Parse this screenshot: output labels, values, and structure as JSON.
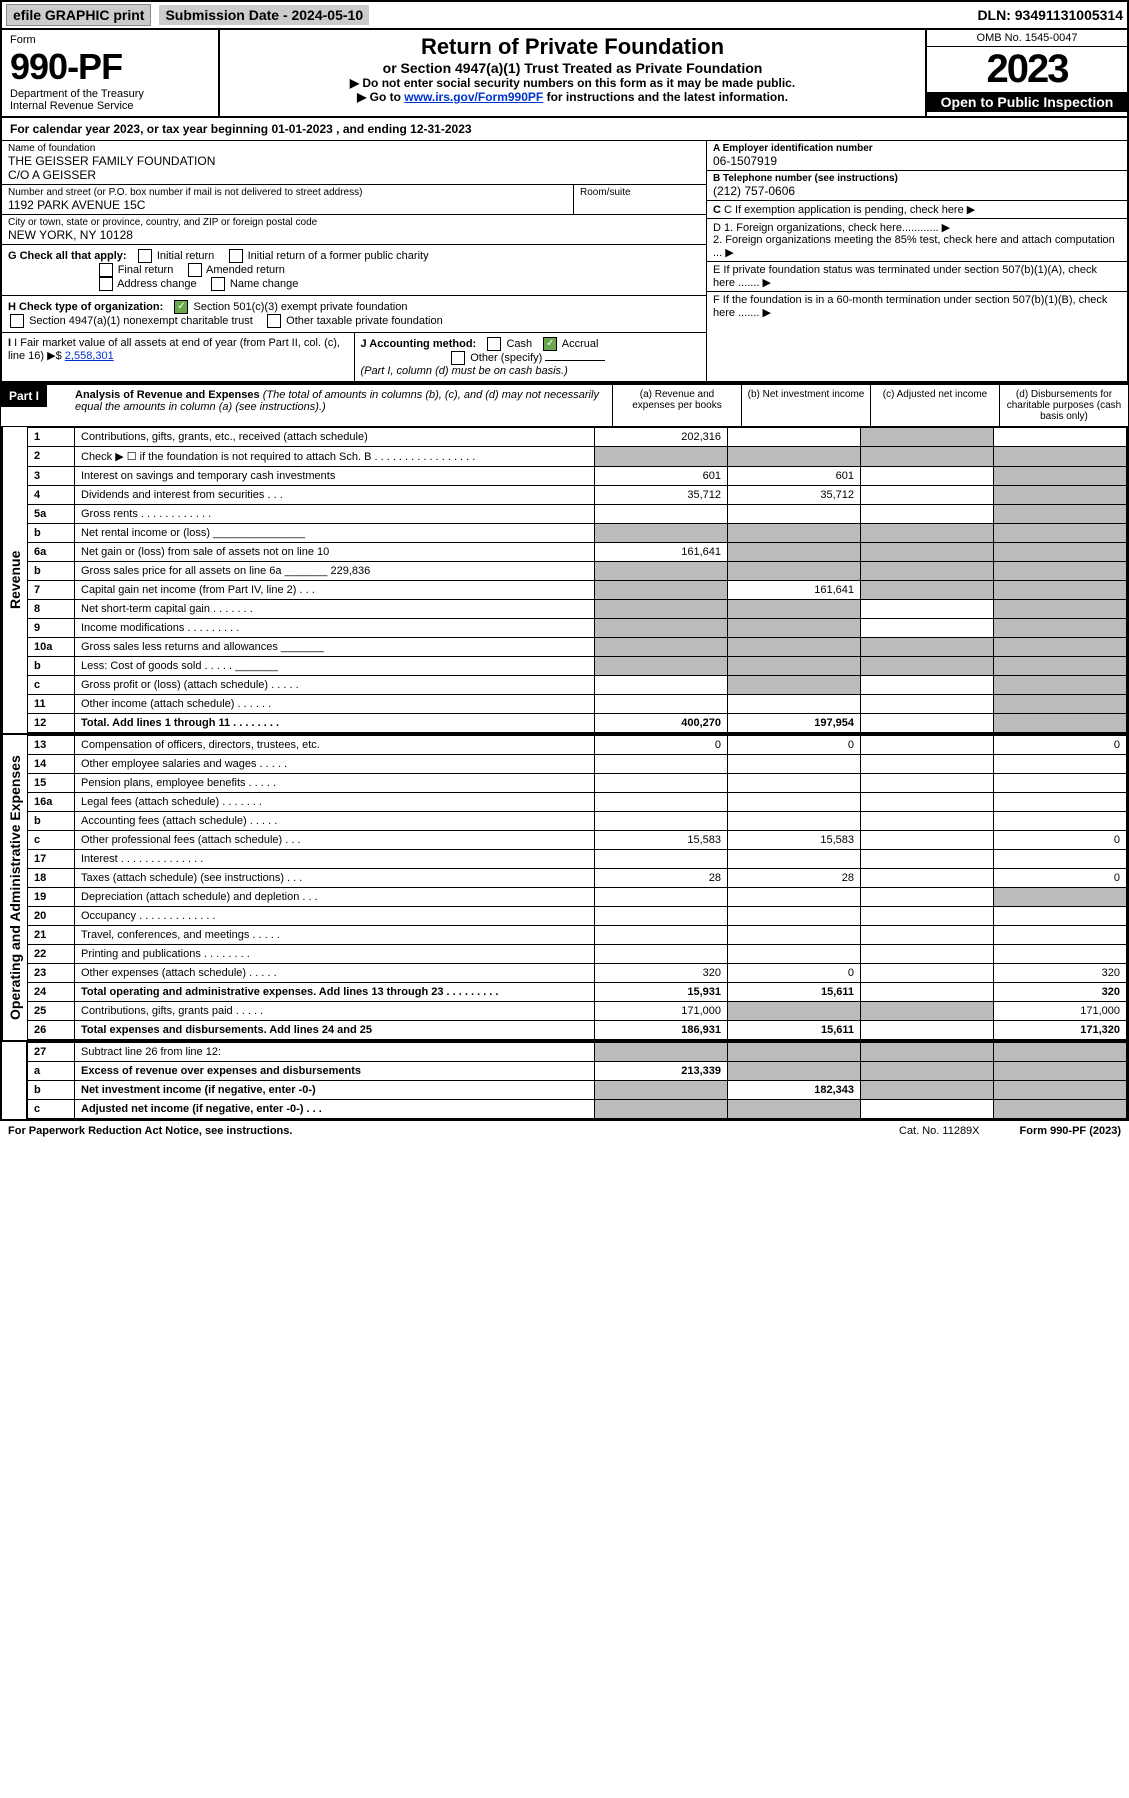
{
  "topbar": {
    "efile": "efile GRAPHIC print",
    "subdate": "Submission Date - 2024-05-10",
    "dln": "DLN: 93491131005314"
  },
  "header": {
    "form_label": "Form",
    "form_num": "990-PF",
    "dept": "Department of the Treasury\nInternal Revenue Service",
    "title": "Return of Private Foundation",
    "subtitle": "or Section 4947(a)(1) Trust Treated as Private Foundation",
    "note1": "▶ Do not enter social security numbers on this form as it may be made public.",
    "note2": "▶ Go to ",
    "note2_link": "www.irs.gov/Form990PF",
    "note2_tail": " for instructions and the latest information.",
    "omb": "OMB No. 1545-0047",
    "year": "2023",
    "open": "Open to Public Inspection"
  },
  "yearline": "For calendar year 2023, or tax year beginning 01-01-2023                        , and ending 12-31-2023",
  "info": {
    "name_lbl": "Name of foundation",
    "name": "THE GEISSER FAMILY FOUNDATION\nC/O A GEISSER",
    "addr_lbl": "Number and street (or P.O. box number if mail is not delivered to street address)",
    "addr": "1192 PARK AVENUE 15C",
    "room_lbl": "Room/suite",
    "city_lbl": "City or town, state or province, country, and ZIP or foreign postal code",
    "city": "NEW YORK, NY  10128",
    "ein_lbl": "A Employer identification number",
    "ein": "06-1507919",
    "tel_lbl": "B Telephone number (see instructions)",
    "tel": "(212) 757-0606",
    "c": "C If exemption application is pending, check here",
    "d1": "D 1. Foreign organizations, check here............",
    "d2": "    2. Foreign organizations meeting the 85% test, check here and attach computation ...",
    "e": "E  If private foundation status was terminated under section 507(b)(1)(A), check here .......",
    "f": "F  If the foundation is in a 60-month termination under section 507(b)(1)(B), check here .......",
    "g_lbl": "G Check all that apply:",
    "g_opts": [
      "Initial return",
      "Initial return of a former public charity",
      "Final return",
      "Amended return",
      "Address change",
      "Name change"
    ],
    "h_lbl": "H Check type of organization:",
    "h_opts": [
      "Section 501(c)(3) exempt private foundation",
      "Section 4947(a)(1) nonexempt charitable trust",
      "Other taxable private foundation"
    ],
    "i_lbl": "I Fair market value of all assets at end of year (from Part II, col. (c), line 16)  ▶$",
    "i_val": "2,558,301",
    "j_lbl": "J Accounting method:",
    "j_opts": [
      "Cash",
      "Accrual",
      "Other (specify)"
    ],
    "j_note": "(Part I, column (d) must be on cash basis.)"
  },
  "part1": {
    "label": "Part I",
    "title": "Analysis of Revenue and Expenses",
    "title_note": "(The total of amounts in columns (b), (c), and (d) may not necessarily equal the amounts in column (a) (see instructions).)",
    "col_a": "(a) Revenue and expenses per books",
    "col_b": "(b) Net investment income",
    "col_c": "(c) Adjusted net income",
    "col_d": "(d) Disbursements for charitable purposes (cash basis only)"
  },
  "sections": {
    "revenue": "Revenue",
    "expenses": "Operating and Administrative Expenses"
  },
  "rows": [
    {
      "n": "1",
      "d": "Contributions, gifts, grants, etc., received (attach schedule)",
      "a": "202,316",
      "b": "",
      "c_shade": true,
      "dd": ""
    },
    {
      "n": "2",
      "d": "Check ▶ ☐ if the foundation is not required to attach Sch. B   . . . . . . . . . . . . . . . . .",
      "a_shade": true,
      "b_shade": true,
      "c_shade": true,
      "dd_shade": true
    },
    {
      "n": "3",
      "d": "Interest on savings and temporary cash investments",
      "a": "601",
      "b": "601",
      "c": "",
      "dd_shade": true
    },
    {
      "n": "4",
      "d": "Dividends and interest from securities   . . .",
      "a": "35,712",
      "b": "35,712",
      "c": "",
      "dd_shade": true
    },
    {
      "n": "5a",
      "d": "Gross rents   . . . . . . . . . . . .",
      "a": "",
      "b": "",
      "c": "",
      "dd_shade": true
    },
    {
      "n": "b",
      "d": "Net rental income or (loss)  _______________",
      "a_shade": true,
      "b_shade": true,
      "c_shade": true,
      "dd_shade": true
    },
    {
      "n": "6a",
      "d": "Net gain or (loss) from sale of assets not on line 10",
      "a": "161,641",
      "b_shade": true,
      "c_shade": true,
      "dd_shade": true
    },
    {
      "n": "b",
      "d": "Gross sales price for all assets on line 6a _______ 229,836",
      "a_shade": true,
      "b_shade": true,
      "c_shade": true,
      "dd_shade": true
    },
    {
      "n": "7",
      "d": "Capital gain net income (from Part IV, line 2)   . . .",
      "a_shade": true,
      "b": "161,641",
      "c_shade": true,
      "dd_shade": true
    },
    {
      "n": "8",
      "d": "Net short-term capital gain   . . . . . . .",
      "a_shade": true,
      "b_shade": true,
      "c": "",
      "dd_shade": true
    },
    {
      "n": "9",
      "d": "Income modifications   . . . . . . . . .",
      "a_shade": true,
      "b_shade": true,
      "c": "",
      "dd_shade": true
    },
    {
      "n": "10a",
      "d": "Gross sales less returns and allowances  _______",
      "a_shade": true,
      "b_shade": true,
      "c_shade": true,
      "dd_shade": true
    },
    {
      "n": "b",
      "d": "Less: Cost of goods sold   . . . . .  _______",
      "a_shade": true,
      "b_shade": true,
      "c_shade": true,
      "dd_shade": true
    },
    {
      "n": "c",
      "d": "Gross profit or (loss) (attach schedule)   . . . . .",
      "a": "",
      "b_shade": true,
      "c": "",
      "dd_shade": true
    },
    {
      "n": "11",
      "d": "Other income (attach schedule)   . . . . . .",
      "a": "",
      "b": "",
      "c": "",
      "dd_shade": true
    },
    {
      "n": "12",
      "d": "Total. Add lines 1 through 11   . . . . . . . .",
      "a": "400,270",
      "b": "197,954",
      "c": "",
      "dd_shade": true,
      "bold": true
    }
  ],
  "exprows": [
    {
      "n": "13",
      "d": "Compensation of officers, directors, trustees, etc.",
      "a": "0",
      "b": "0",
      "c": "",
      "dd": "0"
    },
    {
      "n": "14",
      "d": "Other employee salaries and wages   . . . . .",
      "a": "",
      "b": "",
      "c": "",
      "dd": ""
    },
    {
      "n": "15",
      "d": "Pension plans, employee benefits   . . . . .",
      "a": "",
      "b": "",
      "c": "",
      "dd": ""
    },
    {
      "n": "16a",
      "d": "Legal fees (attach schedule)   . . . . . . .",
      "a": "",
      "b": "",
      "c": "",
      "dd": ""
    },
    {
      "n": "b",
      "d": "Accounting fees (attach schedule)   . . . . .",
      "a": "",
      "b": "",
      "c": "",
      "dd": ""
    },
    {
      "n": "c",
      "d": "Other professional fees (attach schedule)   . . .",
      "a": "15,583",
      "b": "15,583",
      "c": "",
      "dd": "0"
    },
    {
      "n": "17",
      "d": "Interest   . . . . . . . . . . . . . .",
      "a": "",
      "b": "",
      "c": "",
      "dd": ""
    },
    {
      "n": "18",
      "d": "Taxes (attach schedule) (see instructions)   . . .",
      "a": "28",
      "b": "28",
      "c": "",
      "dd": "0"
    },
    {
      "n": "19",
      "d": "Depreciation (attach schedule) and depletion   . . .",
      "a": "",
      "b": "",
      "c": "",
      "dd_shade": true
    },
    {
      "n": "20",
      "d": "Occupancy   . . . . . . . . . . . . .",
      "a": "",
      "b": "",
      "c": "",
      "dd": ""
    },
    {
      "n": "21",
      "d": "Travel, conferences, and meetings   . . . . .",
      "a": "",
      "b": "",
      "c": "",
      "dd": ""
    },
    {
      "n": "22",
      "d": "Printing and publications   . . . . . . . .",
      "a": "",
      "b": "",
      "c": "",
      "dd": ""
    },
    {
      "n": "23",
      "d": "Other expenses (attach schedule)   . . . . .",
      "a": "320",
      "b": "0",
      "c": "",
      "dd": "320"
    },
    {
      "n": "24",
      "d": "Total operating and administrative expenses. Add lines 13 through 23   . . . . . . . . .",
      "a": "15,931",
      "b": "15,611",
      "c": "",
      "dd": "320",
      "bold": true
    },
    {
      "n": "25",
      "d": "Contributions, gifts, grants paid   . . . . .",
      "a": "171,000",
      "b_shade": true,
      "c_shade": true,
      "dd": "171,000"
    },
    {
      "n": "26",
      "d": "Total expenses and disbursements. Add lines 24 and 25",
      "a": "186,931",
      "b": "15,611",
      "c": "",
      "dd": "171,320",
      "bold": true
    }
  ],
  "bottomrows": [
    {
      "n": "27",
      "d": "Subtract line 26 from line 12:",
      "a_shade": true,
      "b_shade": true,
      "c_shade": true,
      "dd_shade": true,
      "bold": false
    },
    {
      "n": "a",
      "d": "Excess of revenue over expenses and disbursements",
      "a": "213,339",
      "b_shade": true,
      "c_shade": true,
      "dd_shade": true,
      "bold": true
    },
    {
      "n": "b",
      "d": "Net investment income (if negative, enter -0-)",
      "a_shade": true,
      "b": "182,343",
      "c_shade": true,
      "dd_shade": true,
      "bold": true
    },
    {
      "n": "c",
      "d": "Adjusted net income (if negative, enter -0-)   . . .",
      "a_shade": true,
      "b_shade": true,
      "c": "",
      "dd_shade": true,
      "bold": true
    }
  ],
  "footer": {
    "pra": "For Paperwork Reduction Act Notice, see instructions.",
    "catno": "Cat. No. 11289X",
    "formref": "Form 990-PF (2023)"
  }
}
